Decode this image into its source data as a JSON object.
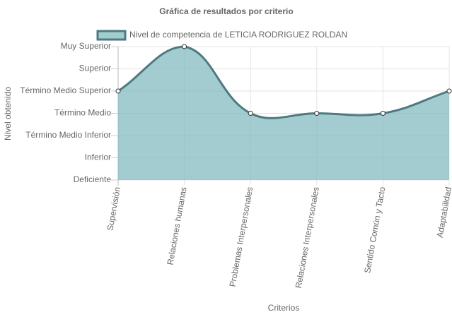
{
  "chart_data": {
    "type": "area",
    "title": "Gráfica de resultados por criterio",
    "x_label": "Criterios",
    "y_label": "Nivel obtenido",
    "categories": [
      "Supervisión",
      "Relaciones humanas",
      "Problemas Interpersonales",
      "Relaciones Interpersonales",
      "Sentido Común y Tacto",
      "Adaptabilidad"
    ],
    "series": [
      {
        "name": "Nivel de competencia de LETICIA RODRIGUEZ ROLDAN",
        "color": "#4e7a80",
        "fill": "rgba(126,184,189,0.72)",
        "values": [
          4,
          6,
          3,
          3,
          3,
          4
        ]
      }
    ],
    "ylim": [
      0,
      6
    ],
    "yticks": [
      {
        "value": 0,
        "label": "Deficiente"
      },
      {
        "value": 1,
        "label": "Inferior"
      },
      {
        "value": 2,
        "label": "Término Medio Inferior"
      },
      {
        "value": 3,
        "label": "Término Medio"
      },
      {
        "value": 4,
        "label": "Término Medio Superior"
      },
      {
        "value": 5,
        "label": "Superior"
      },
      {
        "value": 6,
        "label": "Muy Superior"
      }
    ],
    "grid": true
  }
}
